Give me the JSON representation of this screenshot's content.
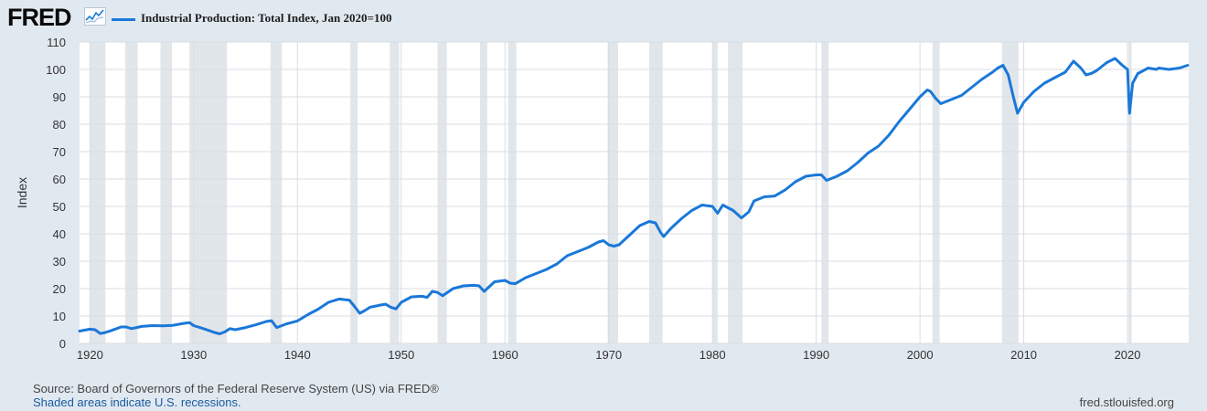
{
  "header": {
    "logo_text": "FRED",
    "logo_icon": "fred-sparkline-icon",
    "legend_label": "Industrial Production: Total Index, Jan 2020=100"
  },
  "colors": {
    "line": "#1a78d8",
    "recession": "#e1e6ea",
    "plot_bg": "#ffffff",
    "page_bg": "#e1e9f0",
    "grid": "#d9dde2"
  },
  "footer": {
    "source": "Source: Board of Governors of the Federal Reserve System (US) via FRED®",
    "recession_note": "Shaded areas indicate U.S. recessions.",
    "url": "fred.stlouisfed.org"
  },
  "chart_data": {
    "type": "line",
    "ylabel": "Index",
    "xlabel": "",
    "xlim": [
      1919.0,
      2025.9
    ],
    "ylim": [
      0,
      110
    ],
    "y_ticks": [
      0,
      10,
      20,
      30,
      40,
      50,
      60,
      70,
      80,
      90,
      100,
      110
    ],
    "x_ticks": [
      1920,
      1930,
      1940,
      1950,
      1960,
      1970,
      1980,
      1990,
      2000,
      2010,
      2020
    ],
    "grid": true,
    "legend_position": "top-left",
    "recessions": [
      [
        1920.0,
        1921.5
      ],
      [
        1923.4,
        1924.6
      ],
      [
        1926.8,
        1927.9
      ],
      [
        1929.6,
        1933.2
      ],
      [
        1937.4,
        1938.5
      ],
      [
        1945.1,
        1945.8
      ],
      [
        1948.9,
        1949.8
      ],
      [
        1953.5,
        1954.4
      ],
      [
        1957.6,
        1958.3
      ],
      [
        1960.3,
        1961.1
      ],
      [
        1969.9,
        1970.9
      ],
      [
        1973.9,
        1975.2
      ],
      [
        1980.0,
        1980.5
      ],
      [
        1981.5,
        1982.9
      ],
      [
        1990.5,
        1991.2
      ],
      [
        2001.2,
        2001.9
      ],
      [
        2007.9,
        2009.5
      ],
      [
        2020.1,
        2020.4
      ]
    ],
    "series": [
      {
        "name": "Industrial Production: Total Index, Jan 2020=100",
        "x": [
          1919.0,
          1920.0,
          1920.5,
          1921.0,
          1921.5,
          1922.0,
          1923.0,
          1923.5,
          1924.0,
          1924.5,
          1925.0,
          1926.0,
          1927.0,
          1928.0,
          1929.0,
          1929.6,
          1930.0,
          1931.0,
          1932.0,
          1932.5,
          1933.0,
          1933.5,
          1934.0,
          1935.0,
          1936.0,
          1937.0,
          1937.5,
          1938.0,
          1938.5,
          1939.0,
          1940.0,
          1941.0,
          1942.0,
          1943.0,
          1944.0,
          1945.0,
          1945.5,
          1946.0,
          1946.5,
          1947.0,
          1948.0,
          1948.5,
          1949.0,
          1949.5,
          1950.0,
          1951.0,
          1952.0,
          1952.5,
          1953.0,
          1953.5,
          1954.0,
          1955.0,
          1956.0,
          1957.0,
          1957.5,
          1958.0,
          1959.0,
          1960.0,
          1960.5,
          1961.0,
          1962.0,
          1963.0,
          1964.0,
          1965.0,
          1966.0,
          1967.0,
          1968.0,
          1969.0,
          1969.5,
          1970.0,
          1970.5,
          1971.0,
          1972.0,
          1973.0,
          1973.9,
          1974.5,
          1975.0,
          1975.3,
          1976.0,
          1977.0,
          1978.0,
          1979.0,
          1980.0,
          1980.5,
          1981.0,
          1981.5,
          1982.0,
          1982.8,
          1983.5,
          1984.0,
          1985.0,
          1986.0,
          1987.0,
          1988.0,
          1989.0,
          1990.0,
          1990.5,
          1991.0,
          1992.0,
          1993.0,
          1994.0,
          1995.0,
          1996.0,
          1997.0,
          1998.0,
          1999.0,
          2000.0,
          2000.7,
          2001.0,
          2001.5,
          2002.0,
          2003.0,
          2004.0,
          2005.0,
          2006.0,
          2007.0,
          2007.5,
          2008.0,
          2008.5,
          2009.0,
          2009.4,
          2010.0,
          2011.0,
          2012.0,
          2013.0,
          2014.0,
          2014.8,
          2015.5,
          2016.0,
          2016.5,
          2017.0,
          2018.0,
          2018.8,
          2019.5,
          2020.0,
          2020.2,
          2020.3,
          2020.5,
          2021.0,
          2022.0,
          2022.8,
          2023.0,
          2024.0,
          2025.0,
          2025.8
        ],
        "values": [
          4.5,
          5.2,
          5.0,
          3.6,
          4.0,
          4.6,
          6.0,
          6.0,
          5.4,
          5.8,
          6.2,
          6.5,
          6.4,
          6.6,
          7.3,
          7.6,
          6.5,
          5.3,
          4.0,
          3.5,
          4.2,
          5.4,
          5.0,
          5.8,
          6.8,
          8.0,
          8.3,
          5.8,
          6.5,
          7.2,
          8.2,
          10.5,
          12.5,
          15.0,
          16.2,
          15.8,
          13.5,
          11.0,
          12.0,
          13.2,
          14.0,
          14.3,
          13.2,
          12.6,
          15.0,
          17.0,
          17.2,
          16.8,
          19.0,
          18.6,
          17.4,
          20.0,
          21.0,
          21.2,
          21.0,
          19.0,
          22.5,
          23.0,
          22.0,
          21.8,
          24.0,
          25.5,
          27.0,
          29.0,
          32.0,
          33.5,
          35.0,
          37.0,
          37.5,
          36.0,
          35.5,
          36.0,
          39.5,
          43.0,
          44.5,
          44.0,
          40.5,
          39.0,
          42.0,
          45.5,
          48.5,
          50.5,
          50.0,
          47.5,
          50.5,
          49.5,
          48.5,
          45.8,
          48.0,
          52.0,
          53.5,
          53.8,
          56.0,
          59.0,
          61.0,
          61.5,
          61.5,
          59.5,
          61.0,
          63.0,
          66.0,
          69.5,
          72.0,
          76.0,
          81.0,
          85.5,
          90.0,
          92.5,
          92.0,
          89.5,
          87.5,
          89.0,
          90.5,
          93.5,
          96.5,
          99.0,
          100.5,
          101.5,
          98.0,
          90.0,
          84.0,
          88.0,
          92.0,
          95.0,
          97.0,
          99.0,
          103.0,
          100.5,
          98.0,
          98.5,
          99.5,
          102.5,
          104.0,
          101.5,
          100.0,
          84.0,
          88.0,
          95.0,
          98.5,
          100.5,
          100.0,
          100.5,
          100.0,
          100.5,
          101.5
        ]
      }
    ]
  }
}
